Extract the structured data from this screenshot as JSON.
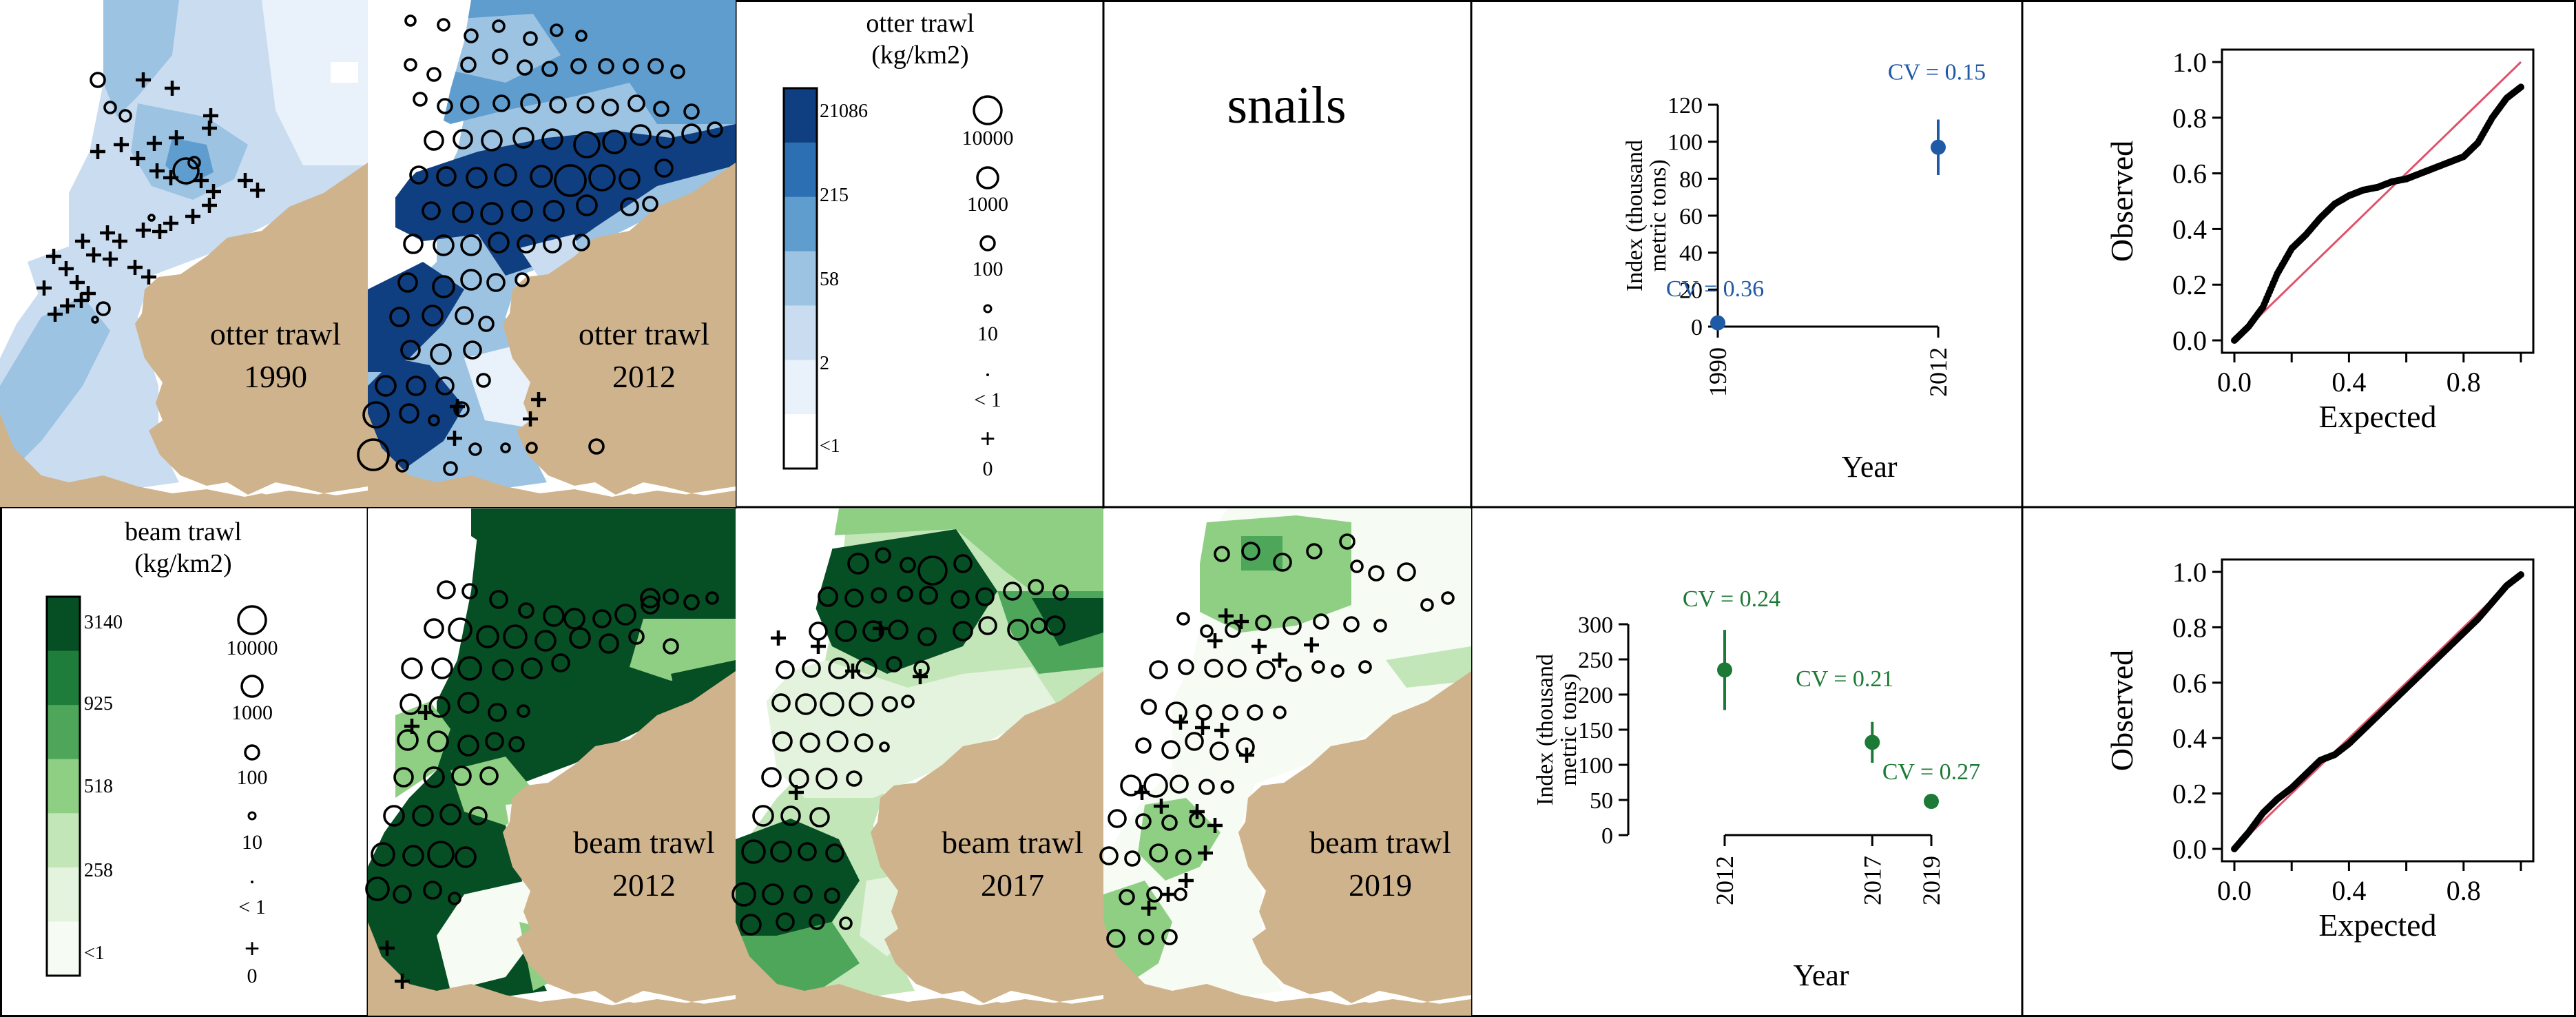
{
  "colors": {
    "otter_scale": [
      "#ffffff",
      "#e9f1fa",
      "#cadcf0",
      "#9dc3e3",
      "#5f9dcf",
      "#2d6fb3",
      "#0f3f80"
    ],
    "beam_scale": [
      "#f6fbf3",
      "#e4f3dd",
      "#c3e6b9",
      "#8fcf84",
      "#4ea65a",
      "#1e7d3a",
      "#064e23"
    ],
    "land": "#cfb38c",
    "otter_point": "#1f5aa6",
    "beam_point": "#1d7a36",
    "qq_line": "#e0526a"
  },
  "panels": {
    "otter_1990": {
      "label": "otter trawl",
      "year": "1990"
    },
    "otter_2012": {
      "label": "otter trawl",
      "year": "2012"
    },
    "beam_2012": {
      "label": "beam trawl",
      "year": "2012"
    },
    "beam_2017": {
      "label": "beam trawl",
      "year": "2017"
    },
    "beam_2019": {
      "label": "beam trawl",
      "year": "2019"
    },
    "species": "snails"
  },
  "legend_otter": {
    "title_line1": "otter trawl",
    "title_line2": "(kg/km2)",
    "breaks": [
      "21086",
      "215",
      "58",
      "2",
      "<1"
    ],
    "bubbles": [
      "10000",
      "1000",
      "100",
      "10",
      "< 1",
      "0"
    ]
  },
  "legend_beam": {
    "title_line1": "beam trawl",
    "title_line2": "(kg/km2)",
    "breaks": [
      "3140",
      "925",
      "518",
      "258",
      "<1"
    ],
    "bubbles": [
      "10000",
      "1000",
      "100",
      "10",
      "< 1",
      "0"
    ]
  },
  "chart_data": [
    {
      "type": "scatter",
      "id": "index_otter",
      "xlabel": "Year",
      "ylabel_line1": "Index (thousand",
      "ylabel_line2": "metric tons)",
      "ylim": [
        0,
        120
      ],
      "yticks": [
        0,
        20,
        40,
        60,
        80,
        100,
        120
      ],
      "x": [
        "1990",
        "2012"
      ],
      "values": [
        2,
        97
      ],
      "ci_low": [
        0,
        82
      ],
      "ci_high": [
        6,
        112
      ],
      "cv_labels": [
        "CV = 0.36",
        "CV = 0.15"
      ]
    },
    {
      "type": "scatter",
      "id": "qq_otter",
      "xlabel": "Expected",
      "ylabel": "Observed",
      "xlim": [
        0,
        1
      ],
      "ylim": [
        0,
        1
      ],
      "xticks": [
        "0.0",
        "0.4",
        "0.8"
      ],
      "yticks": [
        "0.0",
        "0.2",
        "0.4",
        "0.6",
        "0.8",
        "1.0"
      ],
      "expected": [
        0,
        0.05,
        0.1,
        0.15,
        0.2,
        0.25,
        0.3,
        0.35,
        0.4,
        0.45,
        0.5,
        0.55,
        0.6,
        0.65,
        0.7,
        0.75,
        0.8,
        0.85,
        0.9,
        0.95,
        1.0
      ],
      "observed": [
        0,
        0.05,
        0.12,
        0.24,
        0.33,
        0.38,
        0.44,
        0.49,
        0.52,
        0.54,
        0.55,
        0.57,
        0.58,
        0.6,
        0.62,
        0.64,
        0.66,
        0.71,
        0.8,
        0.87,
        0.91
      ]
    },
    {
      "type": "scatter",
      "id": "index_beam",
      "xlabel": "Year",
      "ylabel_line1": "Index (thousand",
      "ylabel_line2": "metric tons)",
      "ylim": [
        0,
        300
      ],
      "yticks": [
        0,
        50,
        100,
        150,
        200,
        250,
        300
      ],
      "x": [
        "2012",
        "2017",
        "2019"
      ],
      "x_numeric": [
        2012,
        2017,
        2019
      ],
      "values": [
        235,
        132,
        48
      ],
      "ci_low": [
        178,
        103,
        38
      ],
      "ci_high": [
        292,
        161,
        58
      ],
      "cv_labels": [
        "CV = 0.24",
        "CV = 0.21",
        "CV = 0.27"
      ]
    },
    {
      "type": "scatter",
      "id": "qq_beam",
      "xlabel": "Expected",
      "ylabel": "Observed",
      "xlim": [
        0,
        1
      ],
      "ylim": [
        0,
        1
      ],
      "xticks": [
        "0.0",
        "0.4",
        "0.8"
      ],
      "yticks": [
        "0.0",
        "0.2",
        "0.4",
        "0.6",
        "0.8",
        "1.0"
      ],
      "expected": [
        0,
        0.05,
        0.1,
        0.15,
        0.2,
        0.25,
        0.3,
        0.35,
        0.4,
        0.45,
        0.5,
        0.55,
        0.6,
        0.65,
        0.7,
        0.75,
        0.8,
        0.85,
        0.9,
        0.95,
        1.0
      ],
      "observed": [
        0,
        0.06,
        0.13,
        0.18,
        0.22,
        0.27,
        0.32,
        0.34,
        0.38,
        0.43,
        0.48,
        0.53,
        0.58,
        0.63,
        0.68,
        0.73,
        0.78,
        0.83,
        0.89,
        0.95,
        0.99
      ]
    }
  ]
}
